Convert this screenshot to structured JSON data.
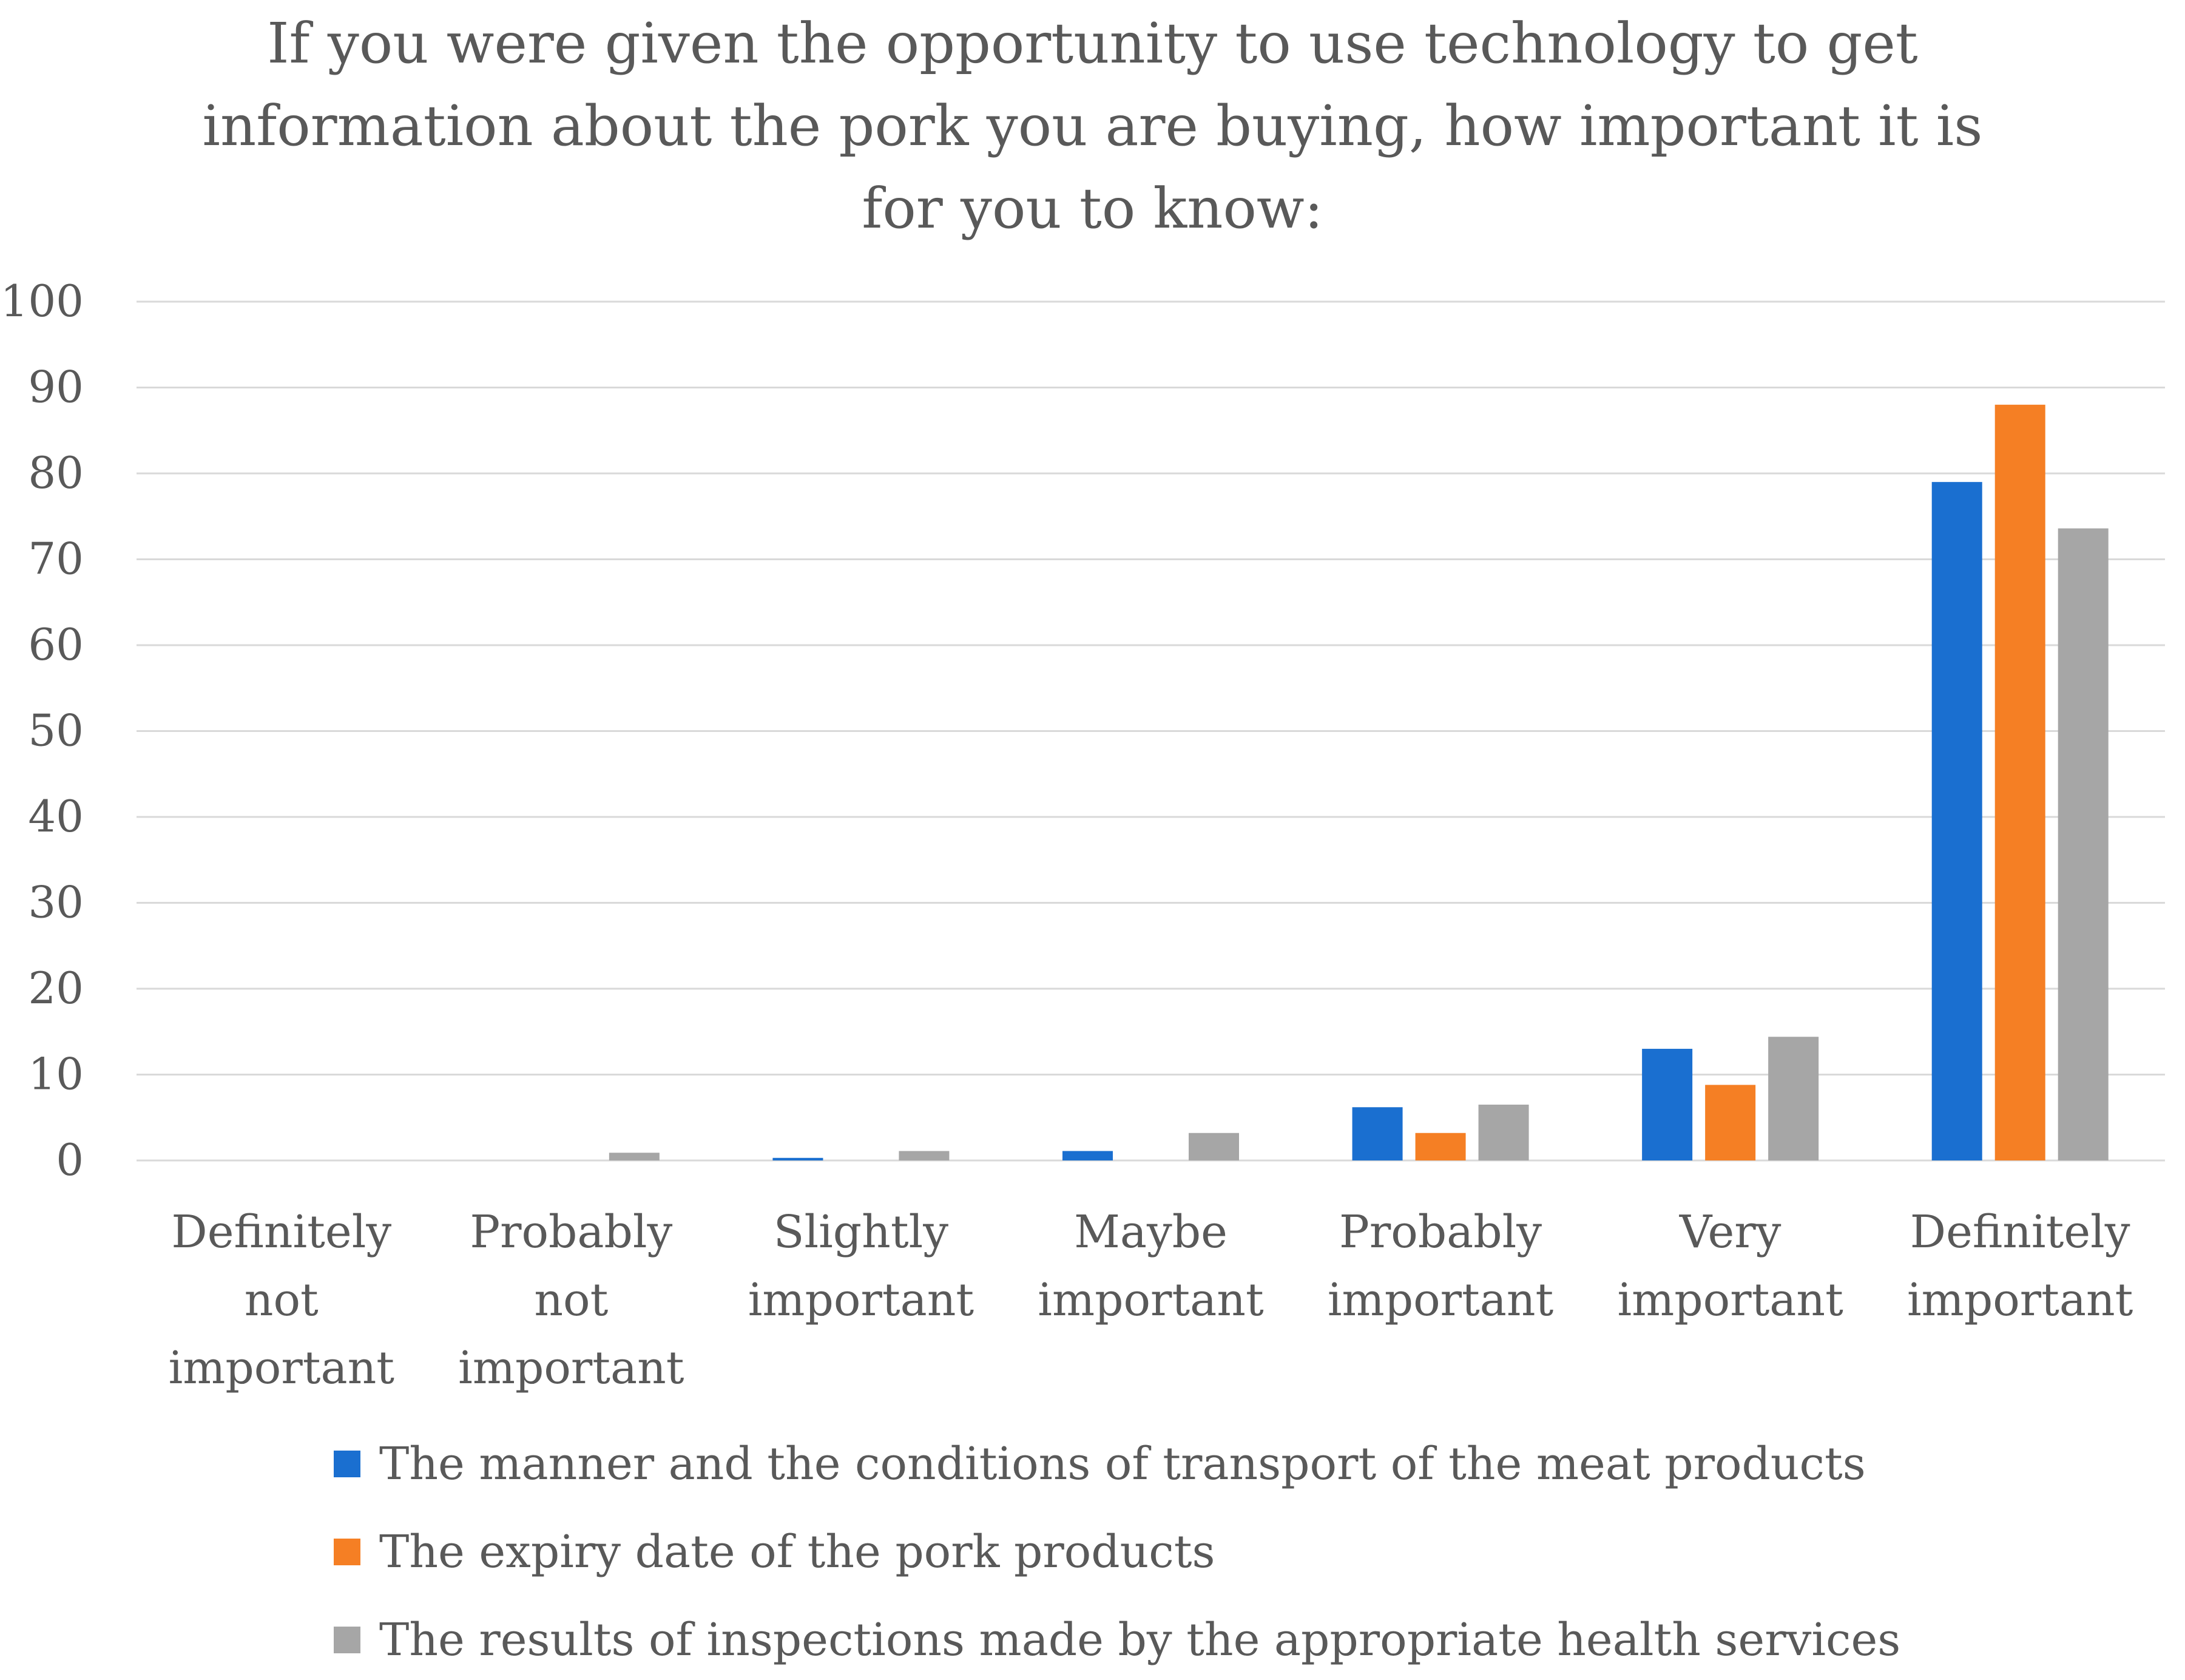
{
  "chart_data": {
    "type": "bar",
    "title_lines": [
      "If you were given the opportunity to use technology to get",
      "information about the pork you are buying, how important it is",
      "for you to know:"
    ],
    "categories": [
      [
        "Definitely",
        "not",
        "important"
      ],
      [
        "Probably",
        "not",
        "important"
      ],
      [
        "Slightly",
        "important"
      ],
      [
        "Maybe",
        "important"
      ],
      [
        "Probably",
        "important"
      ],
      [
        "Very",
        "important"
      ],
      [
        "Definitely",
        "important"
      ]
    ],
    "series": [
      {
        "name": "The manner and the conditions of transport of the meat products",
        "color": "#1a6fd0",
        "values": [
          0,
          0,
          0.3,
          1.1,
          6.2,
          13.0,
          79.0
        ]
      },
      {
        "name": "The expiry date of the pork products",
        "color": "#f57f24",
        "values": [
          0,
          0,
          0,
          0,
          3.2,
          8.8,
          88.0
        ]
      },
      {
        "name": "The results of inspections made by the appropriate health services",
        "color": "#a6a6a6",
        "values": [
          0,
          0.9,
          1.1,
          3.2,
          6.5,
          14.4,
          73.6
        ]
      }
    ],
    "yticks": [
      "0",
      "10",
      "20",
      "30",
      "40",
      "50",
      "60",
      "70",
      "80",
      "90",
      "100"
    ],
    "ylim": [
      0,
      100
    ],
    "grid": true,
    "legend_position": "bottom"
  }
}
